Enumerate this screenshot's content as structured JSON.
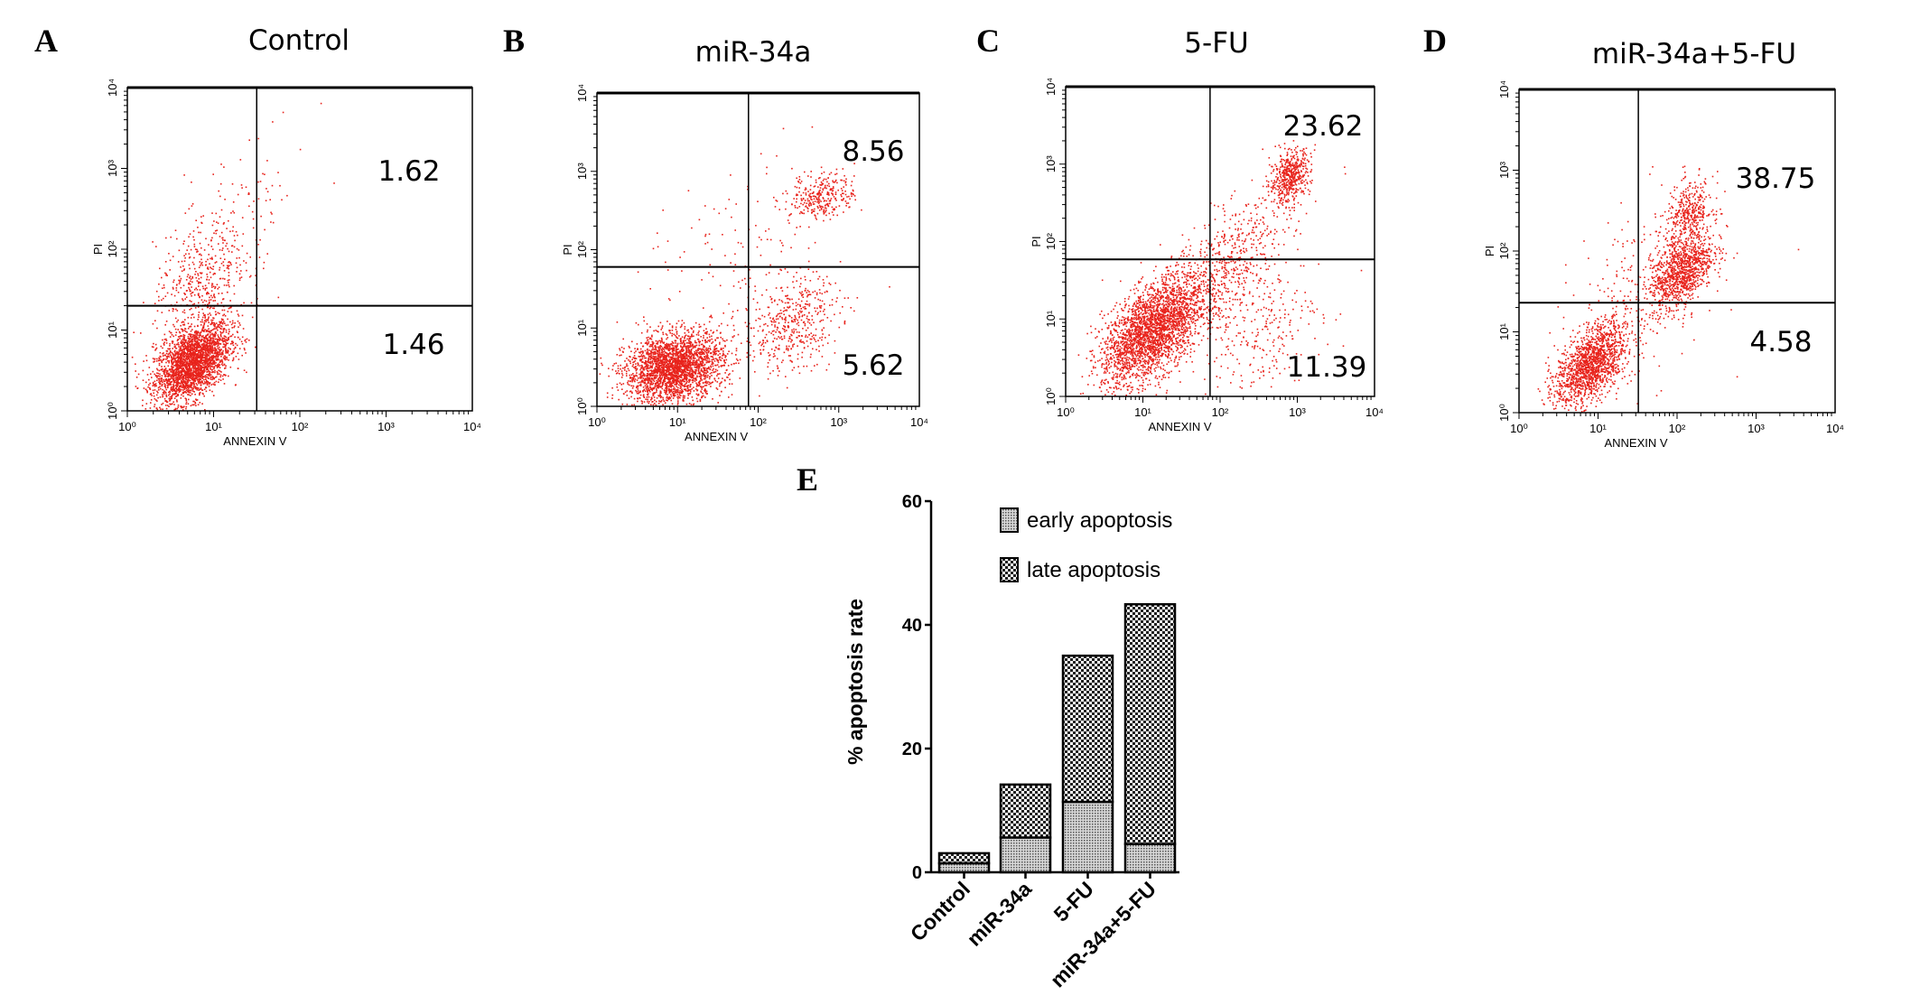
{
  "panel_letters": [
    "A",
    "B",
    "C",
    "D",
    "E"
  ],
  "chart_data": [
    {
      "type": "scatter",
      "panel": "A",
      "title": "Control",
      "xlabel": "ANNEXIN V",
      "ylabel": "PI",
      "xscale": "log",
      "yscale": "log",
      "xlim": [
        1,
        10000
      ],
      "ylim": [
        1,
        10000
      ],
      "xticks": [
        "10⁰",
        "10¹",
        "10²",
        "10³",
        "10⁴"
      ],
      "yticks": [
        "10⁰",
        "10¹",
        "10²",
        "10³",
        "10⁴"
      ],
      "quadrant_values": {
        "upper_right": 1.62,
        "lower_right": 1.46
      },
      "color": "#e8231c"
    },
    {
      "type": "scatter",
      "panel": "B",
      "title": "miR-34a",
      "xlabel": "ANNEXIN V",
      "ylabel": "PI",
      "xscale": "log",
      "yscale": "log",
      "xlim": [
        1,
        10000
      ],
      "ylim": [
        1,
        10000
      ],
      "xticks": [
        "10⁰",
        "10¹",
        "10²",
        "10³",
        "10⁴"
      ],
      "yticks": [
        "10⁰",
        "10¹",
        "10²",
        "10³",
        "10⁴"
      ],
      "quadrant_values": {
        "upper_right": 8.56,
        "lower_right": 5.62
      },
      "color": "#e8231c"
    },
    {
      "type": "scatter",
      "panel": "C",
      "title": "5-FU",
      "xlabel": "ANNEXIN V",
      "ylabel": "PI",
      "xscale": "log",
      "yscale": "log",
      "xlim": [
        1,
        10000
      ],
      "ylim": [
        1,
        10000
      ],
      "xticks": [
        "10⁰",
        "10¹",
        "10²",
        "10³",
        "10⁴"
      ],
      "yticks": [
        "10⁰",
        "10¹",
        "10²",
        "10³",
        "10⁴"
      ],
      "quadrant_values": {
        "upper_right": 23.62,
        "lower_right": 11.39
      },
      "color": "#e8231c"
    },
    {
      "type": "scatter",
      "panel": "D",
      "title": "miR-34a+5-FU",
      "xlabel": "ANNEXIN V",
      "ylabel": "PI",
      "xscale": "log",
      "yscale": "log",
      "xlim": [
        1,
        10000
      ],
      "ylim": [
        1,
        10000
      ],
      "xticks": [
        "10⁰",
        "10¹",
        "10²",
        "10³",
        "10⁴"
      ],
      "yticks": [
        "10⁰",
        "10¹",
        "10²",
        "10³",
        "10⁴"
      ],
      "quadrant_values": {
        "upper_right": 38.75,
        "lower_right": 4.58
      },
      "color": "#e8231c"
    },
    {
      "type": "bar",
      "stacked": true,
      "panel": "E",
      "title": "",
      "xlabel": "",
      "ylabel": "% apoptosis rate",
      "ylim": [
        0,
        60
      ],
      "yticks": [
        "0",
        "20",
        "40",
        "60"
      ],
      "categories": [
        "Control",
        "miR-34a",
        "5-FU",
        "miR-34a+5-FU"
      ],
      "series": [
        {
          "name": "early apoptosis",
          "values": [
            1.46,
            5.62,
            11.39,
            4.58
          ],
          "pattern": "fine-dots"
        },
        {
          "name": "late  apoptosis",
          "values": [
            1.62,
            8.56,
            23.62,
            38.75
          ],
          "pattern": "checker"
        }
      ],
      "legend": "top-right"
    }
  ]
}
